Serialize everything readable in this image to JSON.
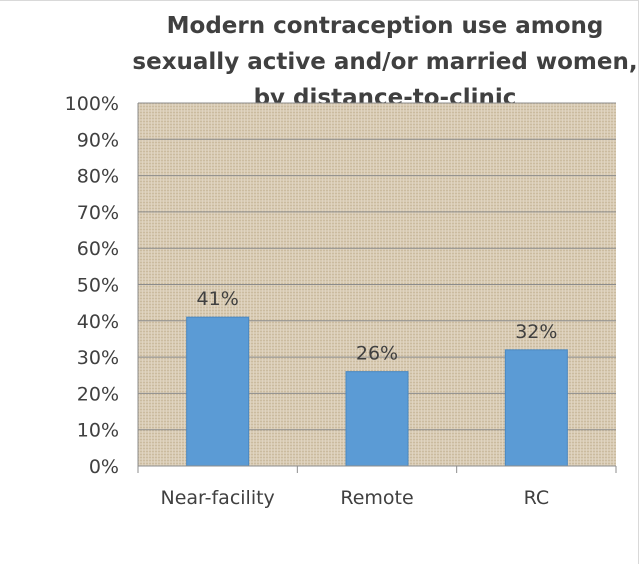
{
  "chart_data": {
    "type": "bar",
    "title_lines": [
      "Modern contraception use among",
      "sexually active and/or married women,",
      "by distance-to-clinic"
    ],
    "categories": [
      "Near-facility",
      "Remote",
      "RC"
    ],
    "values": [
      41,
      26,
      32
    ],
    "data_labels": [
      "41%",
      "26%",
      "32%"
    ],
    "y_ticks": [
      "0%",
      "10%",
      "20%",
      "30%",
      "40%",
      "50%",
      "60%",
      "70%",
      "80%",
      "90%",
      "100%"
    ],
    "ylim": [
      0,
      100
    ],
    "xlabel": "",
    "ylabel": "",
    "grid": true,
    "legend": "none",
    "colors": {
      "bar": "#5b9bd5",
      "bar_edge": "#4a88c2",
      "plot_background": "#d8cbb4",
      "gridline": "#8c8c8c",
      "text": "#404040"
    }
  }
}
